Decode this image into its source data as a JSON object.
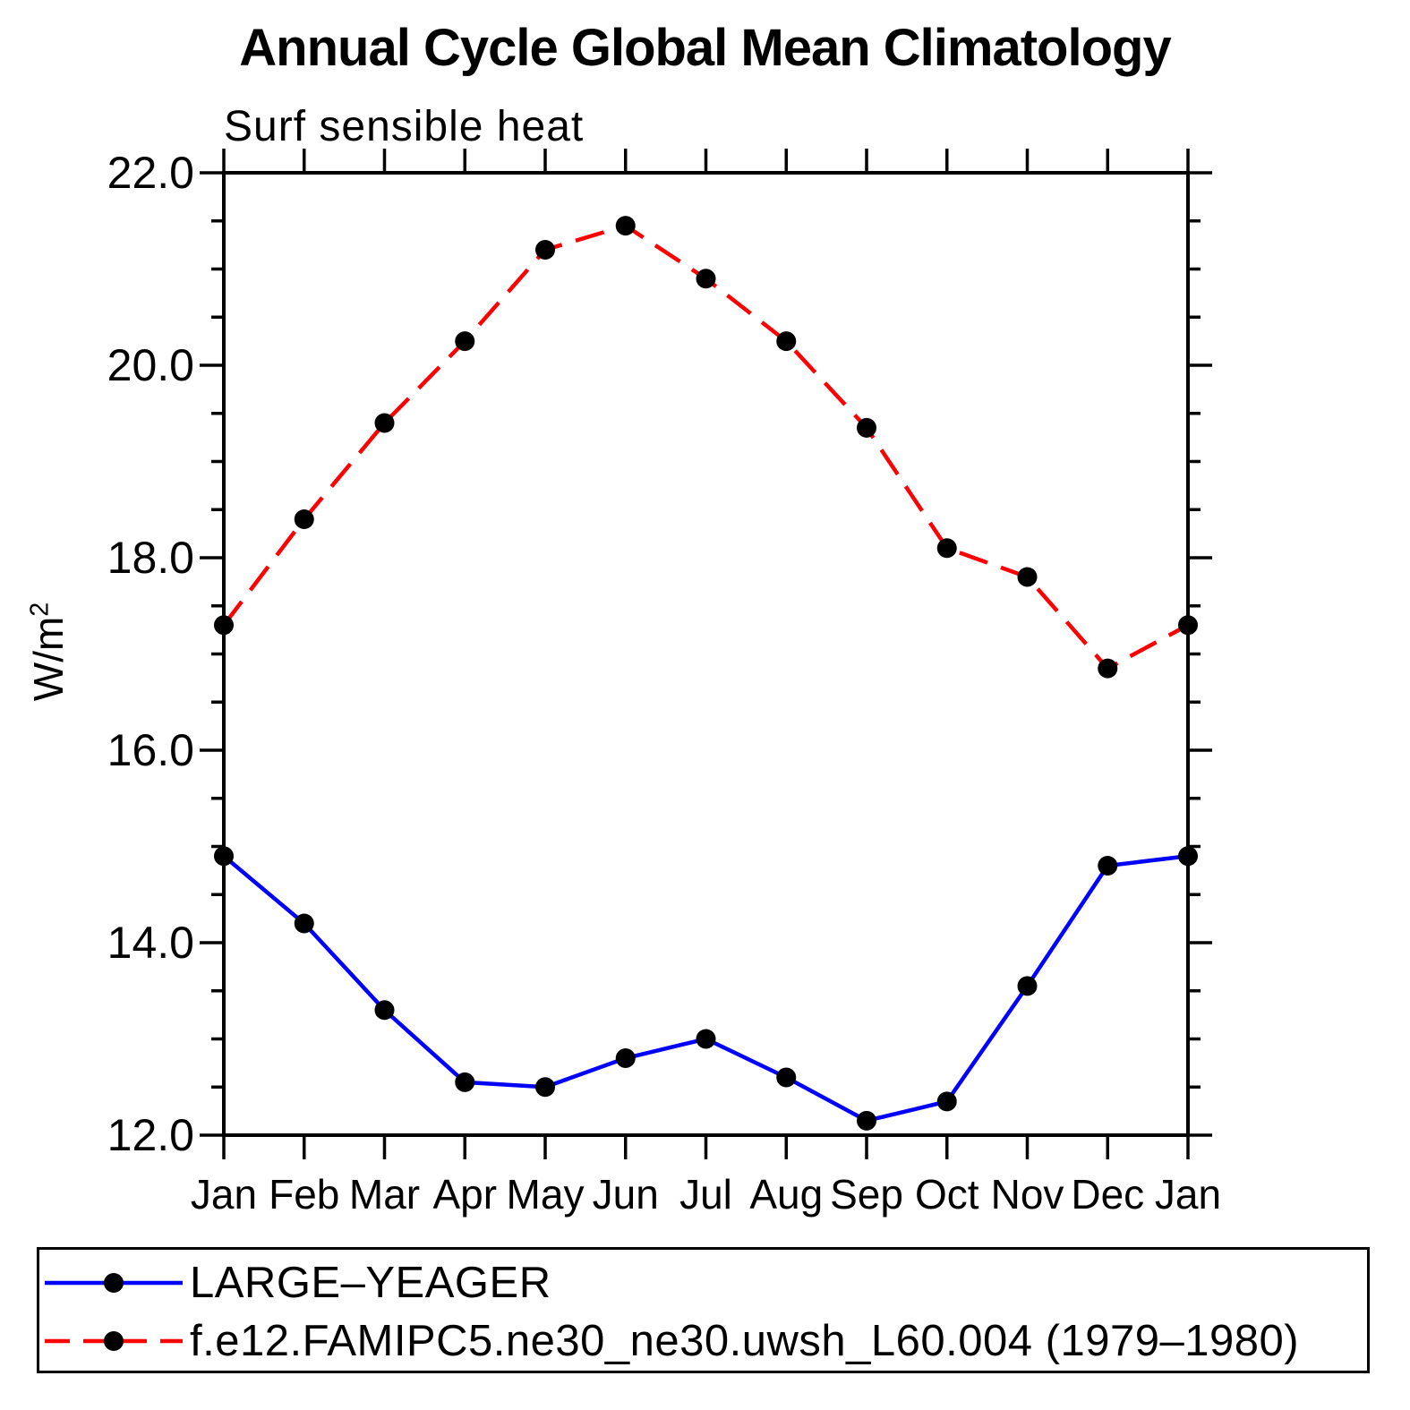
{
  "page": {
    "background": "#ffffff",
    "axis_color": "#000000"
  },
  "chart_data": {
    "type": "line",
    "title": "Annual Cycle Global Mean Climatology",
    "subtitle": "Surf sensible heat",
    "ylabel_base": "W/m",
    "ylabel_exponent": "2",
    "x_categories": [
      "Jan",
      "Feb",
      "Mar",
      "Apr",
      "May",
      "Jun",
      "Jul",
      "Aug",
      "Sep",
      "Oct",
      "Nov",
      "Dec",
      "Jan"
    ],
    "ylim": [
      12.0,
      22.0
    ],
    "y_major_ticks": [
      {
        "value": 12.0,
        "label": "12.0"
      },
      {
        "value": 14.0,
        "label": "14.0"
      },
      {
        "value": 16.0,
        "label": "16.0"
      },
      {
        "value": 18.0,
        "label": "18.0"
      },
      {
        "value": 20.0,
        "label": "20.0"
      },
      {
        "value": 22.0,
        "label": "22.0"
      }
    ],
    "y_minor_step": 0.5,
    "grid": false,
    "legend_position": "bottom",
    "series": [
      {
        "name": "LARGE–YEAGER",
        "color": "#0000ff",
        "line_style": "solid",
        "marker": "circle",
        "marker_color": "#000000",
        "values": [
          14.9,
          14.2,
          13.3,
          12.55,
          12.5,
          12.8,
          13.0,
          12.6,
          12.15,
          12.35,
          13.55,
          14.8,
          14.9
        ]
      },
      {
        "name": "f.e12.FAMIPC5.ne30_ne30.uwsh_L60.004 (1979–1980)",
        "color": "#ff0000",
        "line_style": "dashed",
        "marker": "circle",
        "marker_color": "#000000",
        "values": [
          17.3,
          18.4,
          19.4,
          20.25,
          21.2,
          21.45,
          20.9,
          20.25,
          19.35,
          18.1,
          17.8,
          16.85,
          17.3
        ]
      }
    ]
  }
}
